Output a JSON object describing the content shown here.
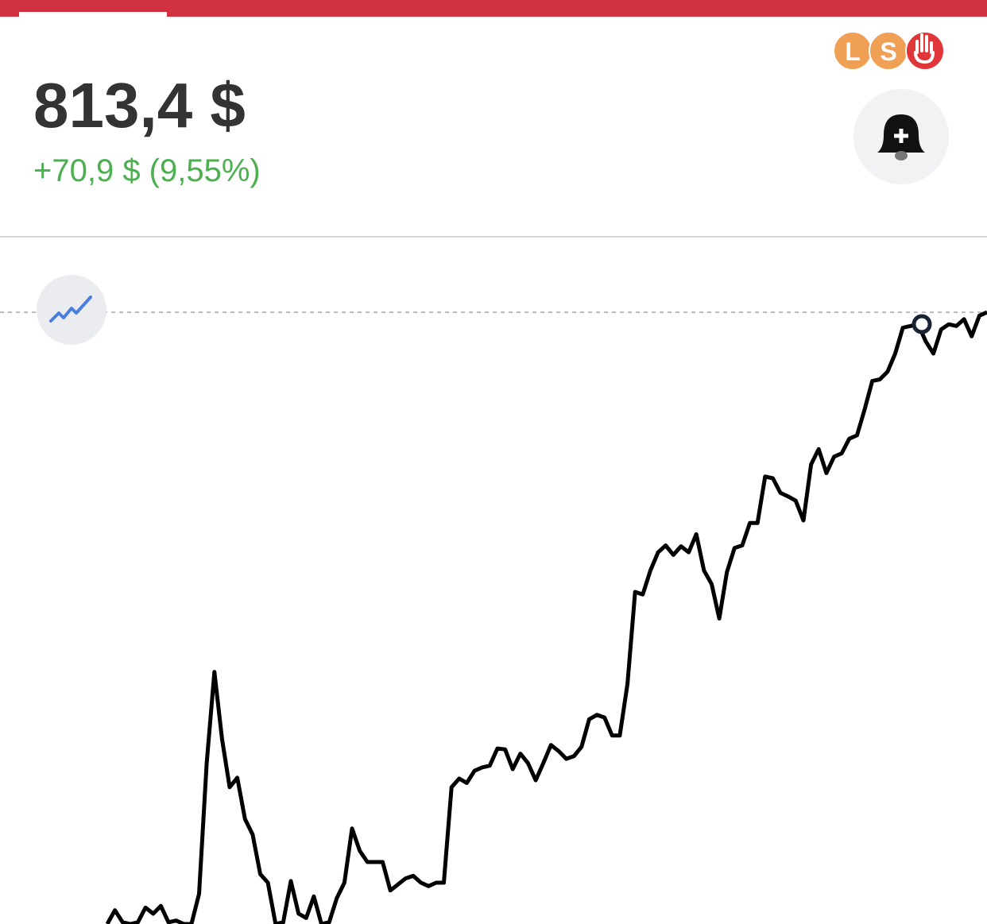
{
  "header": {
    "price": "813,4 $",
    "change": "+70,9 $ (9,55%)",
    "badges": [
      "L",
      "S"
    ]
  },
  "chart_data": {
    "type": "line",
    "color": "#000000",
    "ylim": [
      742.3,
      813.4
    ],
    "values": [
      742.3,
      743.9,
      742.5,
      742.3,
      742.5,
      744.2,
      743.5,
      744.4,
      742.5,
      742.7,
      742.3,
      742.3,
      745.8,
      761.0,
      771.6,
      763.8,
      758.2,
      759.3,
      754.5,
      752.7,
      748.1,
      747.1,
      742.3,
      742.5,
      747.3,
      743.5,
      743.0,
      745.5,
      742.3,
      742.5,
      745.3,
      747.1,
      753.4,
      750.8,
      749.5,
      749.5,
      749.5,
      746.2,
      746.9,
      747.6,
      747.9,
      747.1,
      746.7,
      747.1,
      747.1,
      758.2,
      759.2,
      758.7,
      760.1,
      760.5,
      760.7,
      762.7,
      762.6,
      760.3,
      762.1,
      761.0,
      759.0,
      761.0,
      763.1,
      762.4,
      761.5,
      761.8,
      762.9,
      766.1,
      766.6,
      766.3,
      764.2,
      764.2,
      770.2,
      780.9,
      780.6,
      783.4,
      785.5,
      786.3,
      785.2,
      786.2,
      785.5,
      787.6,
      783.4,
      781.8,
      777.8,
      783.2,
      786.0,
      786.3,
      788.9,
      788.9,
      794.3,
      794.1,
      792.4,
      792.0,
      791.5,
      789.2,
      795.7,
      797.5,
      794.7,
      796.6,
      797.0,
      798.7,
      799.1,
      802.1,
      805.4,
      805.6,
      806.5,
      808.6,
      811.6,
      811.8,
      812.0,
      810.0,
      808.6,
      811.4,
      812.0,
      811.8,
      812.6,
      810.6,
      813.0,
      813.4
    ]
  }
}
